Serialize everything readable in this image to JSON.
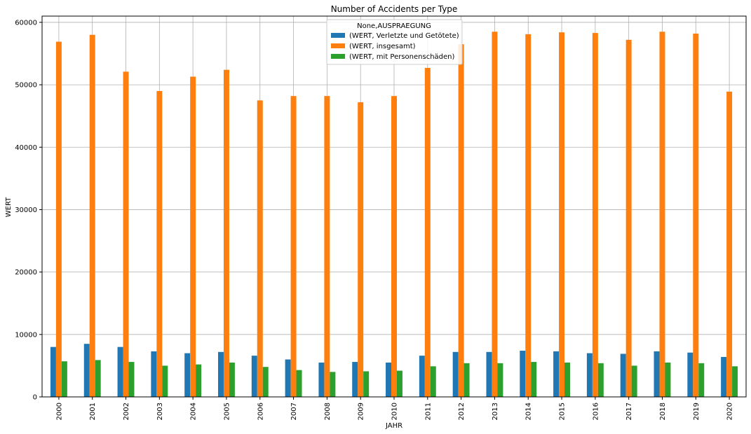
{
  "chart_data": {
    "type": "bar",
    "title": "Number of Accidents per Type",
    "xlabel": "JAHR",
    "ylabel": "WERT",
    "ylim": [
      0,
      61000
    ],
    "yticks": [
      0,
      10000,
      20000,
      30000,
      40000,
      50000,
      60000
    ],
    "grid": true,
    "legend_title": "None,AUSPRAEGUNG",
    "legend_position": "top-center",
    "categories": [
      "2000",
      "2001",
      "2002",
      "2003",
      "2004",
      "2005",
      "2006",
      "2007",
      "2008",
      "2009",
      "2010",
      "2011",
      "2012",
      "2013",
      "2014",
      "2015",
      "2016",
      "2017",
      "2018",
      "2019",
      "2020"
    ],
    "series": [
      {
        "name": "(WERT, Verletzte und Getötete)",
        "color": "#1f77b4",
        "values": [
          8000,
          8500,
          8000,
          7300,
          7000,
          7200,
          6600,
          6000,
          5500,
          5600,
          5500,
          6600,
          7200,
          7200,
          7400,
          7300,
          7000,
          6900,
          7300,
          7100,
          6400
        ]
      },
      {
        "name": "(WERT, insgesamt)",
        "color": "#ff7f0e",
        "values": [
          56900,
          58000,
          52100,
          49000,
          51300,
          52400,
          47500,
          48200,
          48200,
          47200,
          48200,
          52700,
          56500,
          58500,
          58100,
          58400,
          58300,
          57200,
          58500,
          58200,
          48900
        ]
      },
      {
        "name": "(WERT, mit Personenschäden)",
        "color": "#2ca02c",
        "values": [
          5700,
          5900,
          5600,
          5000,
          5200,
          5500,
          4800,
          4300,
          4000,
          4100,
          4200,
          4900,
          5400,
          5400,
          5600,
          5500,
          5400,
          5000,
          5500,
          5400,
          4900
        ]
      }
    ]
  }
}
